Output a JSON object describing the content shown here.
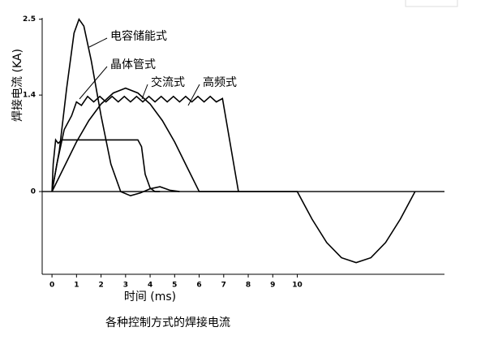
{
  "chart_data": {
    "type": "line",
    "title": "各种控制方式的焊接电流",
    "x_label": "时间 (ms)",
    "y_label": "焊接电流 (KA)",
    "xlim": [
      -0.4,
      16.0
    ],
    "ylim": [
      -1.2,
      2.52
    ],
    "xticks": [
      0,
      1,
      2,
      3,
      4,
      5,
      6,
      7,
      8,
      9,
      10
    ],
    "yticks": [
      0,
      1.4,
      2.5
    ],
    "color": "#000000",
    "series": [
      {
        "name": "电容储能式",
        "color": "#000000",
        "x": [
          0,
          0.3,
          0.6,
          0.9,
          1.1,
          1.3,
          1.6,
          2.0,
          2.4,
          2.8,
          3.2,
          3.6,
          4.0,
          4.4,
          4.8,
          5.2
        ],
        "values": [
          0,
          0.6,
          1.5,
          2.3,
          2.5,
          2.4,
          1.9,
          1.1,
          0.4,
          0,
          -0.06,
          -0.02,
          0.04,
          0.07,
          0.02,
          0
        ]
      },
      {
        "name": "晶体管式",
        "color": "#000000",
        "x": [
          0,
          0.05,
          0.15,
          0.25,
          0.4,
          3.5,
          3.65,
          3.8,
          4.0,
          4.2,
          4.4
        ],
        "values": [
          0,
          0.4,
          0.75,
          0.7,
          0.75,
          0.75,
          0.65,
          0.25,
          0.05,
          0,
          0
        ]
      },
      {
        "name": "交流式",
        "color": "#000000",
        "x": [
          0,
          0.5,
          1.0,
          1.5,
          2.0,
          2.5,
          3.0,
          3.5,
          4.0,
          4.5,
          5.0,
          5.5,
          6.0,
          10.0,
          10.6,
          11.2,
          11.8,
          12.4,
          13.0,
          13.6,
          14.2,
          14.8
        ],
        "values": [
          0,
          0.36,
          0.72,
          1.03,
          1.27,
          1.43,
          1.5,
          1.43,
          1.27,
          1.03,
          0.72,
          0.36,
          0,
          0,
          -0.4,
          -0.74,
          -0.96,
          -1.03,
          -0.96,
          -0.74,
          -0.4,
          0
        ]
      },
      {
        "name": "高频式",
        "color": "#000000",
        "x": [
          0,
          0.2,
          0.5,
          0.8,
          1.0,
          1.2,
          1.45,
          1.7,
          1.95,
          2.2,
          2.45,
          2.7,
          2.95,
          3.2,
          3.45,
          3.7,
          3.95,
          4.2,
          4.45,
          4.7,
          4.95,
          5.2,
          5.45,
          5.7,
          5.95,
          6.2,
          6.45,
          6.7,
          6.95,
          7.6
        ],
        "values": [
          0,
          0.4,
          0.9,
          1.1,
          1.3,
          1.25,
          1.38,
          1.3,
          1.38,
          1.3,
          1.38,
          1.3,
          1.38,
          1.3,
          1.38,
          1.3,
          1.38,
          1.3,
          1.38,
          1.3,
          1.38,
          1.3,
          1.38,
          1.3,
          1.38,
          1.3,
          1.38,
          1.3,
          1.35,
          0
        ]
      }
    ]
  }
}
